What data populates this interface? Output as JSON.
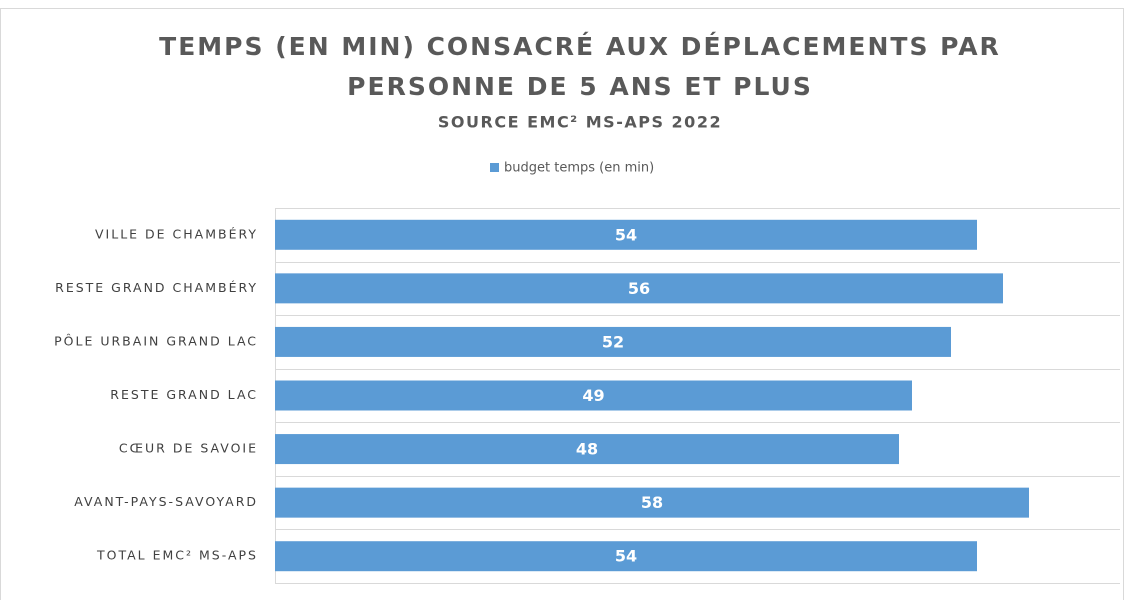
{
  "chart_data": {
    "type": "barh",
    "title": [
      "TEMPS (EN MIN) CONSACRÉ AUX DÉPLACEMENTS PAR",
      "PERSONNE DE 5 ANS ET PLUS"
    ],
    "subtitle": "SOURCE EMC² MS-APS 2022",
    "categories": [
      "VILLE DE CHAMBÉRY",
      "RESTE GRAND CHAMBÉRY",
      "PÔLE URBAIN GRAND LAC",
      "RESTE GRAND LAC",
      "CŒUR DE SAVOIE",
      "AVANT-PAYS-SAVOYARD",
      "TOTAL EMC² MS-APS"
    ],
    "series": [
      {
        "name": "budget temps (en min)",
        "color": "#5b9bd5",
        "values": [
          54,
          56,
          52,
          49,
          48,
          58,
          54
        ]
      }
    ],
    "xlim": [
      0,
      65
    ],
    "legend": "top"
  }
}
